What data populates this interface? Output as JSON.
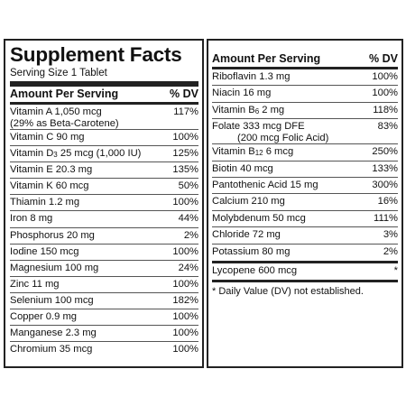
{
  "left": {
    "title": "Supplement Facts",
    "serving": "Serving Size 1 Tablet",
    "header_amount": "Amount Per Serving",
    "header_dv": "% DV",
    "rows": [
      {
        "name": "Vitamin A 1,050 mcg",
        "sub": "(29% as Beta-Carotene)",
        "dv": "117%"
      },
      {
        "name": "Vitamin C 90 mg",
        "dv": "100%"
      },
      {
        "name_pre": "Vitamin D",
        "name_sub": "3",
        "name_post": " 25 mcg (1,000 IU)",
        "dv": "125%"
      },
      {
        "name": "Vitamin E 20.3 mg",
        "dv": "135%"
      },
      {
        "name": "Vitamin K 60 mcg",
        "dv": "50%"
      },
      {
        "name": "Thiamin 1.2 mg",
        "dv": "100%"
      },
      {
        "name": "Iron 8 mg",
        "dv": "44%"
      },
      {
        "name": "Phosphorus 20 mg",
        "dv": "2%"
      },
      {
        "name": "Iodine 150 mcg",
        "dv": "100%"
      },
      {
        "name": "Magnesium 100 mg",
        "dv": "24%"
      },
      {
        "name": "Zinc 11 mg",
        "dv": "100%"
      },
      {
        "name": "Selenium 100 mcg",
        "dv": "182%"
      },
      {
        "name": "Copper 0.9 mg",
        "dv": "100%"
      },
      {
        "name": "Manganese 2.3 mg",
        "dv": "100%"
      },
      {
        "name": "Chromium 35 mcg",
        "dv": "100%"
      }
    ]
  },
  "right": {
    "header_amount": "Amount Per Serving",
    "header_dv": "% DV",
    "rows": [
      {
        "name": "Riboflavin 1.3 mg",
        "dv": "100%"
      },
      {
        "name": "Niacin 16 mg",
        "dv": "100%"
      },
      {
        "name_pre": "Vitamin B",
        "name_sub": "6",
        "name_post": " 2 mg",
        "dv": "118%"
      },
      {
        "name": "Folate 333 mcg DFE",
        "sub": "(200 mcg Folic Acid)",
        "dv": "83%"
      },
      {
        "name_pre": "Vitamin B",
        "name_sub": "12",
        "name_post": " 6 mcg",
        "dv": "250%"
      },
      {
        "name": "Biotin 40 mcg",
        "dv": "133%"
      },
      {
        "name": "Pantothenic Acid 15 mg",
        "dv": "300%"
      },
      {
        "name": "Calcium 210 mg",
        "dv": "16%"
      },
      {
        "name": "Molybdenum 50 mcg",
        "dv": "111%"
      },
      {
        "name": "Chloride 72 mg",
        "dv": "3%"
      },
      {
        "name": "Potassium 80 mg",
        "dv": "2%"
      }
    ],
    "extra_row": {
      "name": "Lycopene 600 mcg",
      "dv": "*"
    },
    "footnote": "* Daily Value (DV) not established."
  }
}
